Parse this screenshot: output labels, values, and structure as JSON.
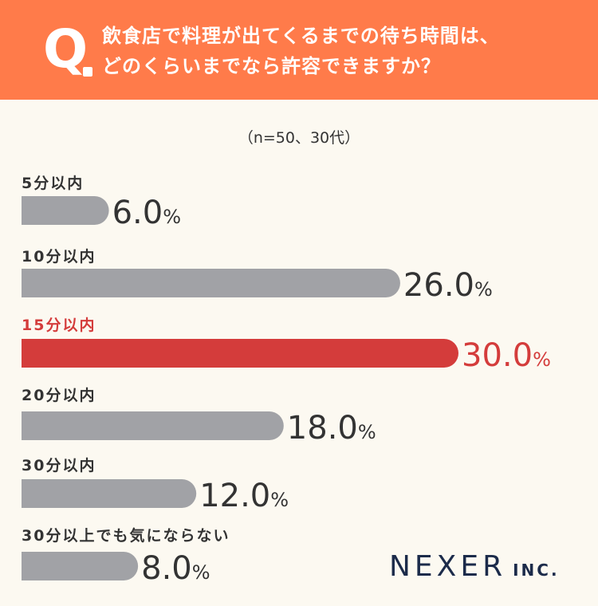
{
  "header": {
    "q_label": "Q",
    "question_line1": "飲食店で料理が出てくるまでの待ち時間は、",
    "question_line2": "どのくらいまでなら許容できますか？"
  },
  "subtitle": "（n=50、30代）",
  "logo": {
    "main": "NEXER",
    "sub": "INC."
  },
  "colors": {
    "header_bg": "#ff7b4a",
    "bar_default": "#a1a2a6",
    "bar_highlight": "#d43c3b",
    "text": "#333333",
    "logo": "#1c2b4a"
  },
  "chart_data": {
    "type": "bar",
    "orientation": "horizontal",
    "categories": [
      "5分以内",
      "10分以内",
      "15分以内",
      "20分以内",
      "30分以内",
      "30分以上でも気にならない"
    ],
    "values": [
      6.0,
      26.0,
      30.0,
      18.0,
      12.0,
      8.0
    ],
    "value_labels": [
      "6.0",
      "26.0",
      "30.0",
      "18.0",
      "12.0",
      "8.0"
    ],
    "unit": "%",
    "highlight_index": 2
  }
}
